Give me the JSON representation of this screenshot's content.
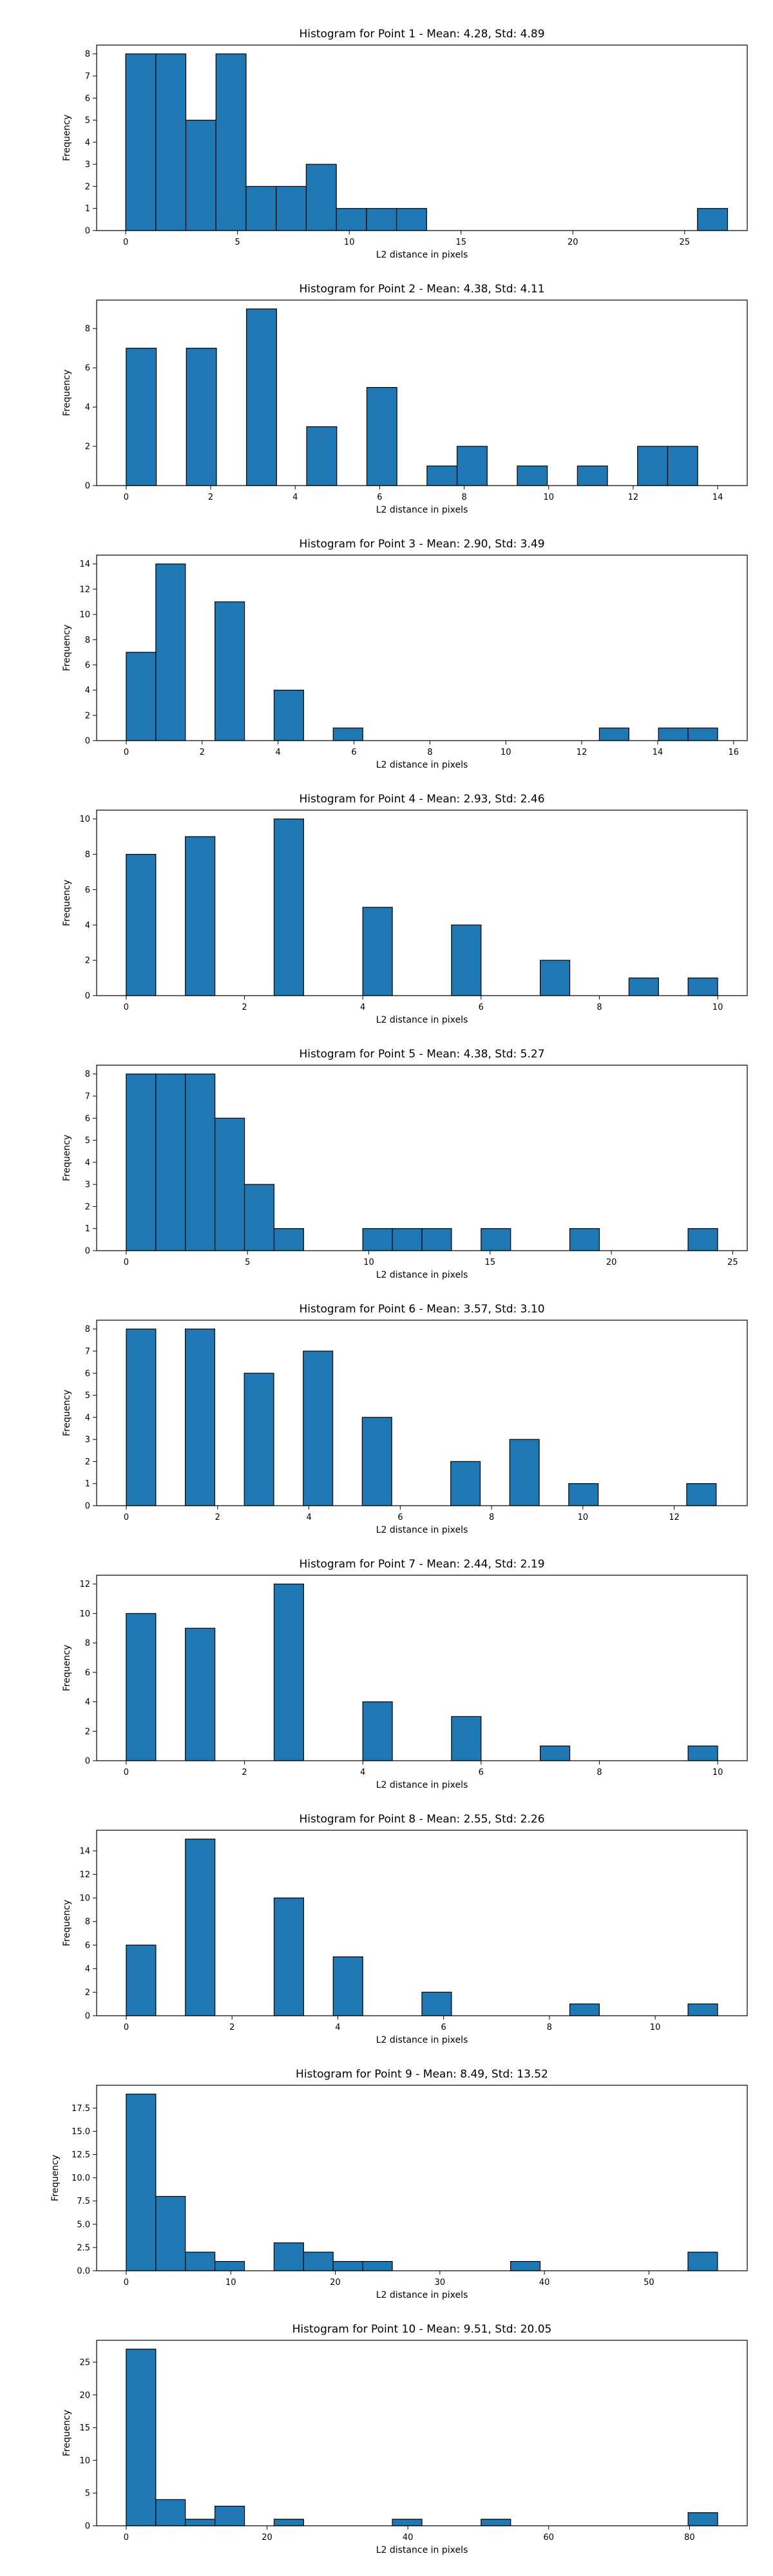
{
  "chart_data": [
    {
      "type": "bar",
      "title": "Histogram for Point 1 - Mean: 4.28, Std: 4.89",
      "xlabel": "L2 distance in pixels",
      "ylabel": "Frequency",
      "xlim": [
        -1.3,
        27.8
      ],
      "ylim": [
        0,
        8.4
      ],
      "xticks": [
        0,
        5,
        10,
        15,
        20,
        25
      ],
      "yticks": [
        0,
        1,
        2,
        3,
        4,
        5,
        6,
        7,
        8
      ],
      "bin_edges": [
        0,
        1.346,
        2.692,
        4.038,
        5.384,
        6.73,
        8.076,
        9.422,
        10.768,
        12.114,
        13.46,
        14.806,
        16.152,
        17.498,
        18.844,
        20.19,
        21.536,
        22.882,
        24.228,
        25.574,
        26.92
      ],
      "values": [
        8,
        8,
        5,
        8,
        2,
        2,
        3,
        1,
        1,
        1,
        0,
        0,
        0,
        0,
        0,
        0,
        0,
        0,
        0,
        1
      ]
    },
    {
      "type": "bar",
      "title": "Histogram for Point 2 - Mean: 4.38, Std: 4.11",
      "xlabel": "L2 distance in pixels",
      "ylabel": "Frequency",
      "xlim": [
        -0.7,
        14.7
      ],
      "ylim": [
        0,
        9.45
      ],
      "xticks": [
        0,
        2,
        4,
        6,
        8,
        10,
        12,
        14
      ],
      "yticks": [
        0,
        2,
        4,
        6,
        8
      ],
      "bin_edges": [
        0,
        0.712,
        1.424,
        2.136,
        2.848,
        3.56,
        4.272,
        4.984,
        5.696,
        6.408,
        7.12,
        7.832,
        8.544,
        9.256,
        9.968,
        10.68,
        11.392,
        12.104,
        12.816,
        13.528,
        14.24
      ],
      "values": [
        7,
        0,
        7,
        0,
        9,
        0,
        3,
        0,
        5,
        0,
        1,
        2,
        0,
        1,
        0,
        1,
        0,
        2,
        2,
        0
      ]
    },
    {
      "type": "bar",
      "title": "Histogram for Point 3 - Mean: 2.90, Std: 3.49",
      "xlabel": "L2 distance in pixels",
      "ylabel": "Frequency",
      "xlim": [
        -0.78,
        16.36
      ],
      "ylim": [
        0,
        14.7
      ],
      "xticks": [
        0,
        2,
        4,
        6,
        8,
        10,
        12,
        14,
        16
      ],
      "yticks": [
        0,
        2,
        4,
        6,
        8,
        10,
        12,
        14
      ],
      "bin_edges": [
        0,
        0.779,
        1.558,
        2.337,
        3.116,
        3.895,
        4.674,
        5.453,
        6.232,
        7.011,
        7.79,
        8.569,
        9.348,
        10.127,
        10.906,
        11.685,
        12.464,
        13.243,
        14.022,
        14.801,
        15.58
      ],
      "values": [
        7,
        14,
        0,
        11,
        0,
        4,
        0,
        1,
        0,
        0,
        0,
        0,
        0,
        0,
        0,
        0,
        1,
        0,
        1,
        1
      ]
    },
    {
      "type": "bar",
      "title": "Histogram for Point 4 - Mean: 2.93, Std: 2.46",
      "xlabel": "L2 distance in pixels",
      "ylabel": "Frequency",
      "xlim": [
        -0.5,
        10.5
      ],
      "ylim": [
        0,
        10.5
      ],
      "xticks": [
        0,
        2,
        4,
        6,
        8,
        10
      ],
      "yticks": [
        0,
        2,
        4,
        6,
        8,
        10
      ],
      "bin_edges": [
        0,
        0.5,
        1.0,
        1.5,
        2.0,
        2.5,
        3.0,
        3.5,
        4.0,
        4.5,
        5.0,
        5.5,
        6.0,
        6.5,
        7.0,
        7.5,
        8.0,
        8.5,
        9.0,
        9.5,
        10.0
      ],
      "values": [
        8,
        0,
        9,
        0,
        0,
        10,
        0,
        0,
        5,
        0,
        0,
        4,
        0,
        0,
        2,
        0,
        0,
        1,
        0,
        1
      ]
    },
    {
      "type": "bar",
      "title": "Histogram for Point 5 - Mean: 4.38, Std: 5.27",
      "xlabel": "L2 distance in pixels",
      "ylabel": "Frequency",
      "xlim": [
        -1.22,
        25.6
      ],
      "ylim": [
        0,
        8.4
      ],
      "xticks": [
        0,
        5,
        10,
        15,
        20,
        25
      ],
      "yticks": [
        0,
        1,
        2,
        3,
        4,
        5,
        6,
        7,
        8
      ],
      "bin_edges": [
        0,
        1.219,
        2.438,
        3.657,
        4.876,
        6.095,
        7.314,
        8.533,
        9.752,
        10.971,
        12.19,
        13.409,
        14.628,
        15.847,
        17.066,
        18.285,
        19.504,
        20.723,
        21.942,
        23.161,
        24.38
      ],
      "values": [
        8,
        8,
        8,
        6,
        3,
        1,
        0,
        0,
        1,
        1,
        1,
        0,
        1,
        0,
        0,
        1,
        0,
        0,
        0,
        1
      ]
    },
    {
      "type": "bar",
      "title": "Histogram for Point 6 - Mean: 3.57, Std: 3.10",
      "xlabel": "L2 distance in pixels",
      "ylabel": "Frequency",
      "xlim": [
        -0.65,
        13.6
      ],
      "ylim": [
        0,
        8.4
      ],
      "xticks": [
        0,
        2,
        4,
        6,
        8,
        10,
        12
      ],
      "yticks": [
        0,
        1,
        2,
        3,
        4,
        5,
        6,
        7,
        8
      ],
      "bin_edges": [
        0,
        0.646,
        1.292,
        1.938,
        2.584,
        3.23,
        3.876,
        4.522,
        5.168,
        5.814,
        6.46,
        7.106,
        7.752,
        8.398,
        9.044,
        9.69,
        10.336,
        10.982,
        11.628,
        12.274,
        12.92
      ],
      "values": [
        8,
        0,
        8,
        0,
        6,
        0,
        7,
        0,
        4,
        0,
        0,
        2,
        0,
        3,
        0,
        1,
        0,
        0,
        0,
        1
      ]
    },
    {
      "type": "bar",
      "title": "Histogram for Point 7 - Mean: 2.44, Std: 2.19",
      "xlabel": "L2 distance in pixels",
      "ylabel": "Frequency",
      "xlim": [
        -0.5,
        10.5
      ],
      "ylim": [
        0,
        12.6
      ],
      "xticks": [
        0,
        2,
        4,
        6,
        8,
        10
      ],
      "yticks": [
        0,
        2,
        4,
        6,
        8,
        10,
        12
      ],
      "bin_edges": [
        0,
        0.5,
        1.0,
        1.5,
        2.0,
        2.5,
        3.0,
        3.5,
        4.0,
        4.5,
        5.0,
        5.5,
        6.0,
        6.5,
        7.0,
        7.5,
        8.0,
        8.5,
        9.0,
        9.5,
        10.0
      ],
      "values": [
        10,
        0,
        9,
        0,
        0,
        12,
        0,
        0,
        4,
        0,
        0,
        3,
        0,
        0,
        1,
        0,
        0,
        0,
        0,
        1
      ]
    },
    {
      "type": "bar",
      "title": "Histogram for Point 8 - Mean: 2.55, Std: 2.26",
      "xlabel": "L2 distance in pixels",
      "ylabel": "Frequency",
      "xlim": [
        -0.56,
        11.74
      ],
      "ylim": [
        0,
        15.75
      ],
      "xticks": [
        0,
        2,
        4,
        6,
        8,
        10
      ],
      "yticks": [
        0,
        2,
        4,
        6,
        8,
        10,
        12,
        14
      ],
      "bin_edges": [
        0,
        0.559,
        1.118,
        1.677,
        2.236,
        2.795,
        3.354,
        3.913,
        4.472,
        5.031,
        5.59,
        6.149,
        6.708,
        7.267,
        7.826,
        8.385,
        8.944,
        9.503,
        10.062,
        10.621,
        11.18
      ],
      "values": [
        6,
        0,
        15,
        0,
        0,
        10,
        0,
        5,
        0,
        0,
        2,
        0,
        0,
        0,
        0,
        1,
        0,
        0,
        0,
        1
      ]
    },
    {
      "type": "bar",
      "title": "Histogram for Point 9 - Mean: 8.49, Std: 13.52",
      "xlabel": "L2 distance in pixels",
      "ylabel": "Frequency",
      "xlim": [
        -2.83,
        59.4
      ],
      "ylim": [
        0,
        19.95
      ],
      "xticks": [
        0,
        10,
        20,
        30,
        40,
        50
      ],
      "yticks": [
        0,
        2.5,
        5.0,
        7.5,
        10.0,
        12.5,
        15.0,
        17.5
      ],
      "ytick_labels": [
        "0.0",
        "2.5",
        "5.0",
        "7.5",
        "10.0",
        "12.5",
        "15.0",
        "17.5"
      ],
      "bin_edges": [
        0,
        2.828,
        5.656,
        8.484,
        11.312,
        14.14,
        16.968,
        19.796,
        22.624,
        25.452,
        28.28,
        31.108,
        33.936,
        36.764,
        39.592,
        42.42,
        45.248,
        48.076,
        50.904,
        53.732,
        56.56
      ],
      "values": [
        19,
        8,
        2,
        1,
        0,
        3,
        2,
        1,
        1,
        0,
        0,
        0,
        0,
        1,
        0,
        0,
        0,
        0,
        0,
        2
      ]
    },
    {
      "type": "bar",
      "title": "Histogram for Point 10 - Mean: 9.51, Std: 20.05",
      "xlabel": "L2 distance in pixels",
      "ylabel": "Frequency",
      "xlim": [
        -4.2,
        88.2
      ],
      "ylim": [
        0,
        28.35
      ],
      "xticks": [
        0,
        20,
        40,
        60,
        80
      ],
      "yticks": [
        0,
        5,
        10,
        15,
        20,
        25
      ],
      "bin_edges": [
        0,
        4.2,
        8.4,
        12.6,
        16.8,
        21.0,
        25.2,
        29.4,
        33.6,
        37.8,
        42.0,
        46.2,
        50.4,
        54.6,
        58.8,
        63.0,
        67.2,
        71.4,
        75.6,
        79.8,
        84.0
      ],
      "values": [
        27,
        4,
        1,
        3,
        0,
        1,
        0,
        0,
        0,
        1,
        0,
        0,
        1,
        0,
        0,
        0,
        0,
        0,
        0,
        2
      ]
    }
  ]
}
